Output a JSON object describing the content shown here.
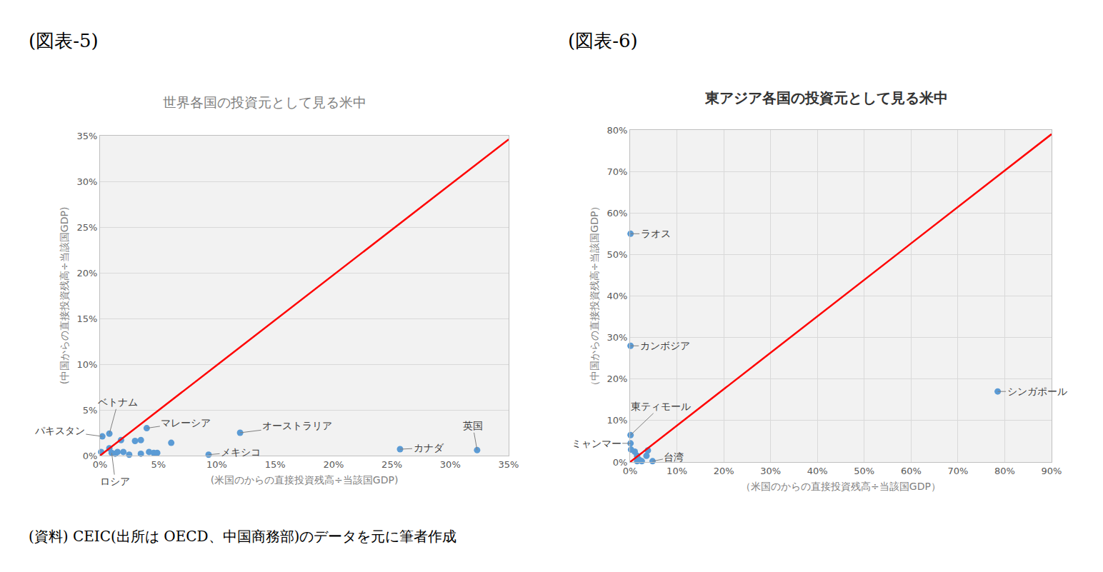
{
  "chart_data": [
    {
      "label": "(図表-5)",
      "type": "scatter",
      "title": "世界各国の投資元として見る米中",
      "x_label": "(米国のからの直接投資残高÷当該国GDP)",
      "y_label": "(中国からの直接投資残高÷当該国GDP)",
      "xlim": [
        0,
        35
      ],
      "ylim": [
        0,
        35
      ],
      "xticks": [
        {
          "value": 0,
          "label": "0%"
        },
        {
          "value": 5,
          "label": "5%"
        },
        {
          "value": 10,
          "label": "10%"
        },
        {
          "value": 15,
          "label": "15%"
        },
        {
          "value": 20,
          "label": "20%"
        },
        {
          "value": 25,
          "label": "25%"
        },
        {
          "value": 30,
          "label": "30%"
        },
        {
          "value": 35,
          "label": "35%"
        }
      ],
      "yticks": [
        {
          "value": 0,
          "label": "0%"
        },
        {
          "value": 5,
          "label": "5%"
        },
        {
          "value": 10,
          "label": "10%"
        },
        {
          "value": 15,
          "label": "15%"
        },
        {
          "value": 20,
          "label": "20%"
        },
        {
          "value": 25,
          "label": "25%"
        },
        {
          "value": 30,
          "label": "30%"
        },
        {
          "value": 35,
          "label": "35%"
        }
      ],
      "grid": "y",
      "series": [
        {
          "type": "scatter",
          "marker": "circle",
          "color": "#5b9bd5",
          "x": [
            0.1,
            0.2,
            0.8,
            0.8,
            1.0,
            1.3,
            1.5,
            1.8,
            2.0,
            2.5,
            3.0,
            3.5,
            3.5,
            4.0,
            4.2,
            4.6,
            4.9,
            6.1,
            9.3,
            12.0,
            25.7,
            32.3
          ],
          "values": [
            0.4,
            2.1,
            2.4,
            0.8,
            0.3,
            0.2,
            0.4,
            1.7,
            0.4,
            0.1,
            1.6,
            0.2,
            1.7,
            3.0,
            0.4,
            0.3,
            0.3,
            1.4,
            0.1,
            2.5,
            0.7,
            0.6
          ]
        },
        {
          "type": "line",
          "line_style": "solid",
          "color": "#ff0000",
          "x": [
            0,
            35
          ],
          "values": [
            0,
            34.6
          ]
        }
      ],
      "annotations": [
        {
          "text": "パキスタン",
          "x": 0.2,
          "y": 2.1
        },
        {
          "text": "ベトナム",
          "x": 0.8,
          "y": 2.4
        },
        {
          "text": "ロシア",
          "x": 1.0,
          "y": 0.3
        },
        {
          "text": "マレーシア",
          "x": 4.0,
          "y": 3.0
        },
        {
          "text": "オーストラリア",
          "x": 12.0,
          "y": 2.5
        },
        {
          "text": "メキシコ",
          "x": 9.3,
          "y": 0.1
        },
        {
          "text": "カナダ",
          "x": 25.7,
          "y": 0.7
        },
        {
          "text": "英国",
          "x": 32.3,
          "y": 0.6
        }
      ]
    },
    {
      "label": "(図表-6)",
      "type": "scatter",
      "title": "東アジア各国の投資元として見る米中",
      "x_label": "（米国のからの直接投資残高÷当該国GDP）",
      "y_label": "（中国からの直接投資残高÷当該国GDP）",
      "xlim": [
        0,
        90
      ],
      "ylim": [
        0,
        80
      ],
      "xticks": [
        {
          "value": 0,
          "label": "0%"
        },
        {
          "value": 10,
          "label": "10%"
        },
        {
          "value": 20,
          "label": "20%"
        },
        {
          "value": 30,
          "label": "30%"
        },
        {
          "value": 40,
          "label": "40%"
        },
        {
          "value": 50,
          "label": "50%"
        },
        {
          "value": 60,
          "label": "60%"
        },
        {
          "value": 70,
          "label": "70%"
        },
        {
          "value": 80,
          "label": "80%"
        },
        {
          "value": 90,
          "label": "90%"
        }
      ],
      "yticks": [
        {
          "value": 0,
          "label": "0%"
        },
        {
          "value": 10,
          "label": "10%"
        },
        {
          "value": 20,
          "label": "20%"
        },
        {
          "value": 30,
          "label": "30%"
        },
        {
          "value": 40,
          "label": "40%"
        },
        {
          "value": 50,
          "label": "50%"
        },
        {
          "value": 60,
          "label": "60%"
        },
        {
          "value": 70,
          "label": "70%"
        },
        {
          "value": 80,
          "label": "80%"
        }
      ],
      "grid": true,
      "series": [
        {
          "type": "scatter",
          "marker": "circle",
          "color": "#5b9bd5",
          "x": [
            0.1,
            0.1,
            0.1,
            0.1,
            0.2,
            1.0,
            1.5,
            2.0,
            1.5,
            2.5,
            3.5,
            3.8,
            4.8,
            78.5
          ],
          "values": [
            55,
            28,
            6.5,
            4.5,
            3.0,
            2.5,
            1.5,
            0.5,
            0.2,
            0.2,
            1.5,
            2.8,
            0.2,
            17
          ]
        },
        {
          "type": "line",
          "line_style": "solid",
          "color": "#ff0000",
          "x": [
            0,
            90
          ],
          "values": [
            0,
            79
          ]
        }
      ],
      "annotations": [
        {
          "text": "ラオス",
          "x": 0.1,
          "y": 55
        },
        {
          "text": "カンボジア",
          "x": 0.1,
          "y": 28
        },
        {
          "text": "東ティモール",
          "x": 0.1,
          "y": 6.5
        },
        {
          "text": "ミャンマー",
          "x": 0.1,
          "y": 4.5
        },
        {
          "text": "台湾",
          "x": 4.8,
          "y": 0.2
        },
        {
          "text": "シンガポール",
          "x": 78.5,
          "y": 17
        }
      ]
    }
  ],
  "source": "(資料) CEIC(出所は OECD、中国商務部)のデータを元に筆者作成"
}
